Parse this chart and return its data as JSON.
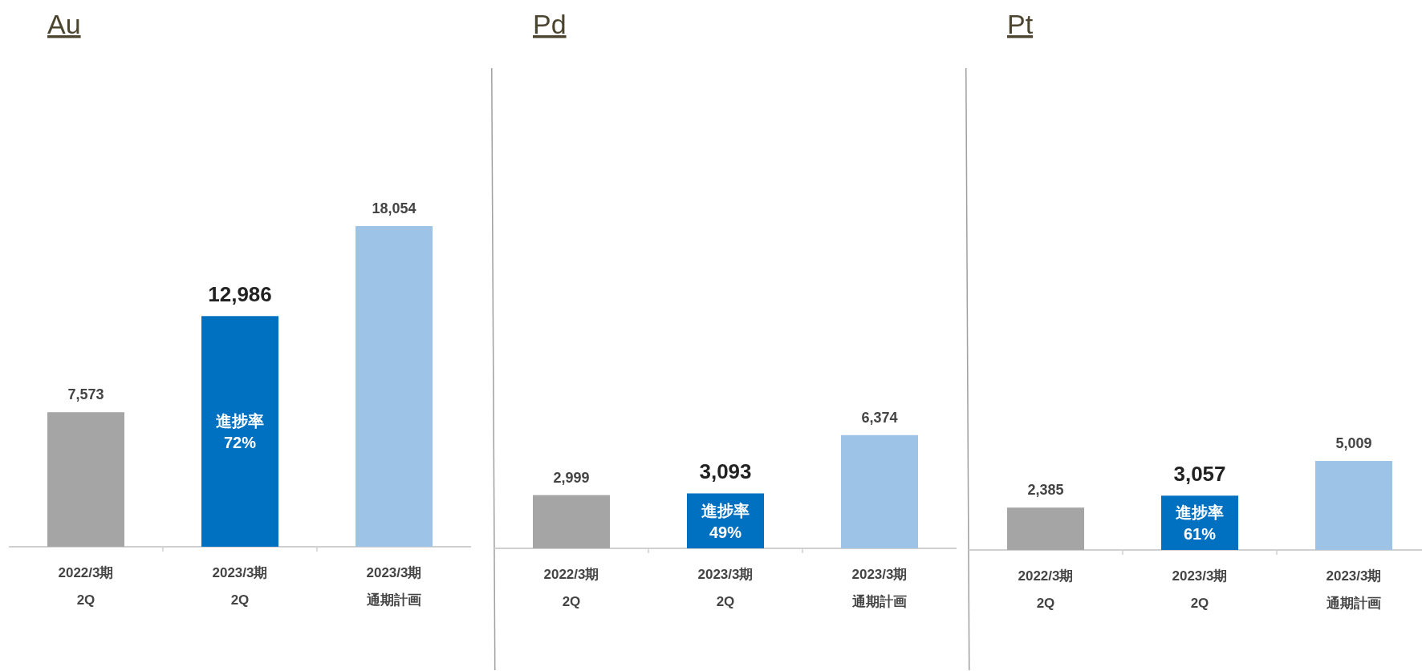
{
  "chart_data": [
    {
      "type": "bar",
      "title": "Au",
      "categories": [
        "2022/3期 2Q",
        "2023/3期 2Q",
        "2023/3期通期計画"
      ],
      "values": [
        7573,
        12986,
        18054
      ],
      "value_labels": [
        "7,573",
        "12,986",
        "18,054"
      ],
      "colors": [
        "#a5a5a5",
        "#0070c0",
        "#9dc3e6"
      ],
      "annotations": [
        "進捗率 72%"
      ]
    },
    {
      "type": "bar",
      "title": "Pd",
      "categories": [
        "2022/3期 2Q",
        "2023/3期 2Q",
        "2023/3期通期計画"
      ],
      "values": [
        2999,
        3093,
        6374
      ],
      "value_labels": [
        "2,999",
        "3,093",
        "6,374"
      ],
      "colors": [
        "#a5a5a5",
        "#0070c0",
        "#9dc3e6"
      ],
      "annotations": [
        "進捗率 49%"
      ]
    },
    {
      "type": "bar",
      "title": "Pt",
      "categories": [
        "2022/3期 2Q",
        "2023/3期 2Q",
        "2023/3期通期計画"
      ],
      "values": [
        2385,
        3057,
        5009
      ],
      "value_labels": [
        "2,385",
        "3,057",
        "5,009"
      ],
      "colors": [
        "#a5a5a5",
        "#0070c0",
        "#9dc3e6"
      ],
      "annotations": [
        "進捗率 61%"
      ]
    }
  ]
}
